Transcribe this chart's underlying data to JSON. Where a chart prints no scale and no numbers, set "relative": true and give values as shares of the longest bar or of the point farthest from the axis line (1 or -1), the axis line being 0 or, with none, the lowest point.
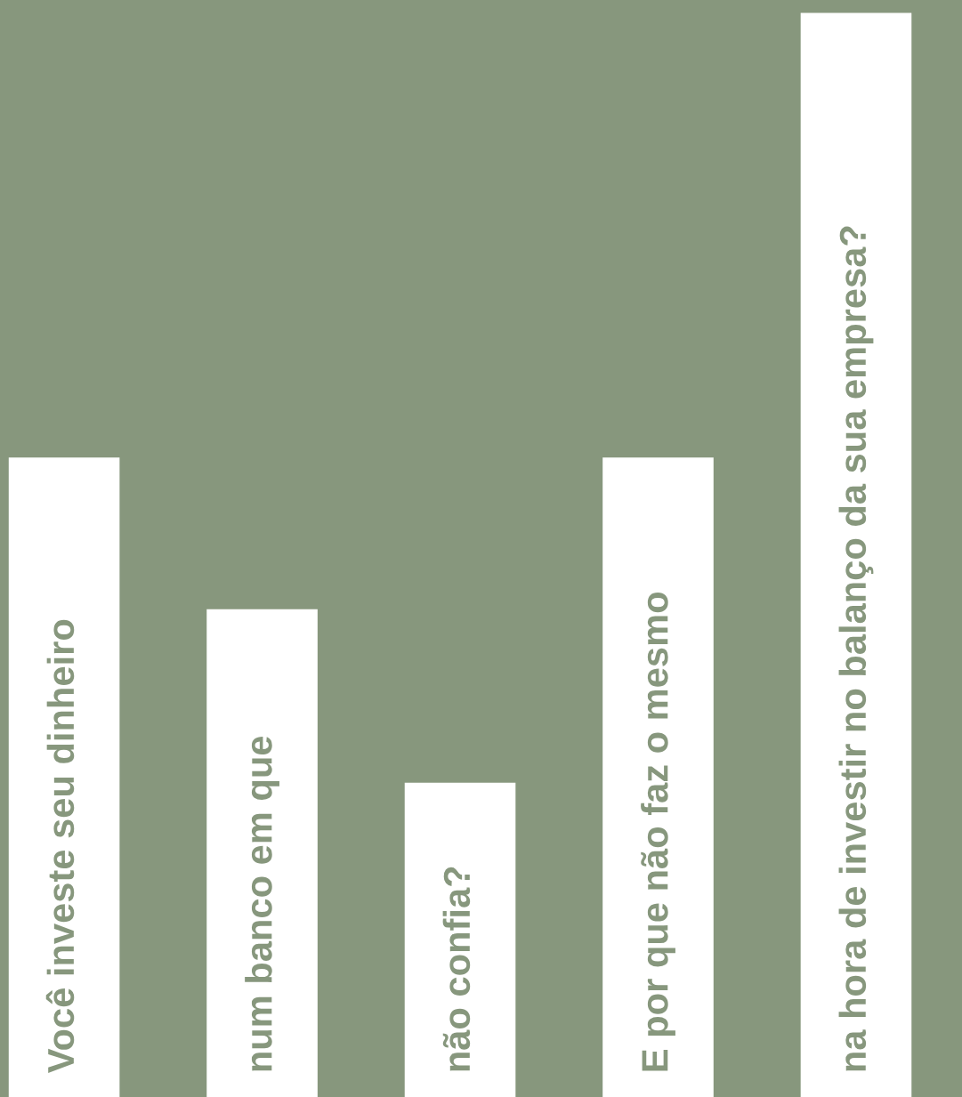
{
  "chart_data": {
    "type": "bar",
    "relative": true,
    "categories": [
      "Você investe seu dinheiro",
      "num banco em que",
      "não confia?",
      "E por que não faz o mesmo",
      "na hora de investir no balanço da sua empresa?"
    ],
    "values": [
      0.59,
      0.45,
      0.29,
      0.59,
      1.0
    ],
    "color": "#ffffff",
    "legend": false
  }
}
